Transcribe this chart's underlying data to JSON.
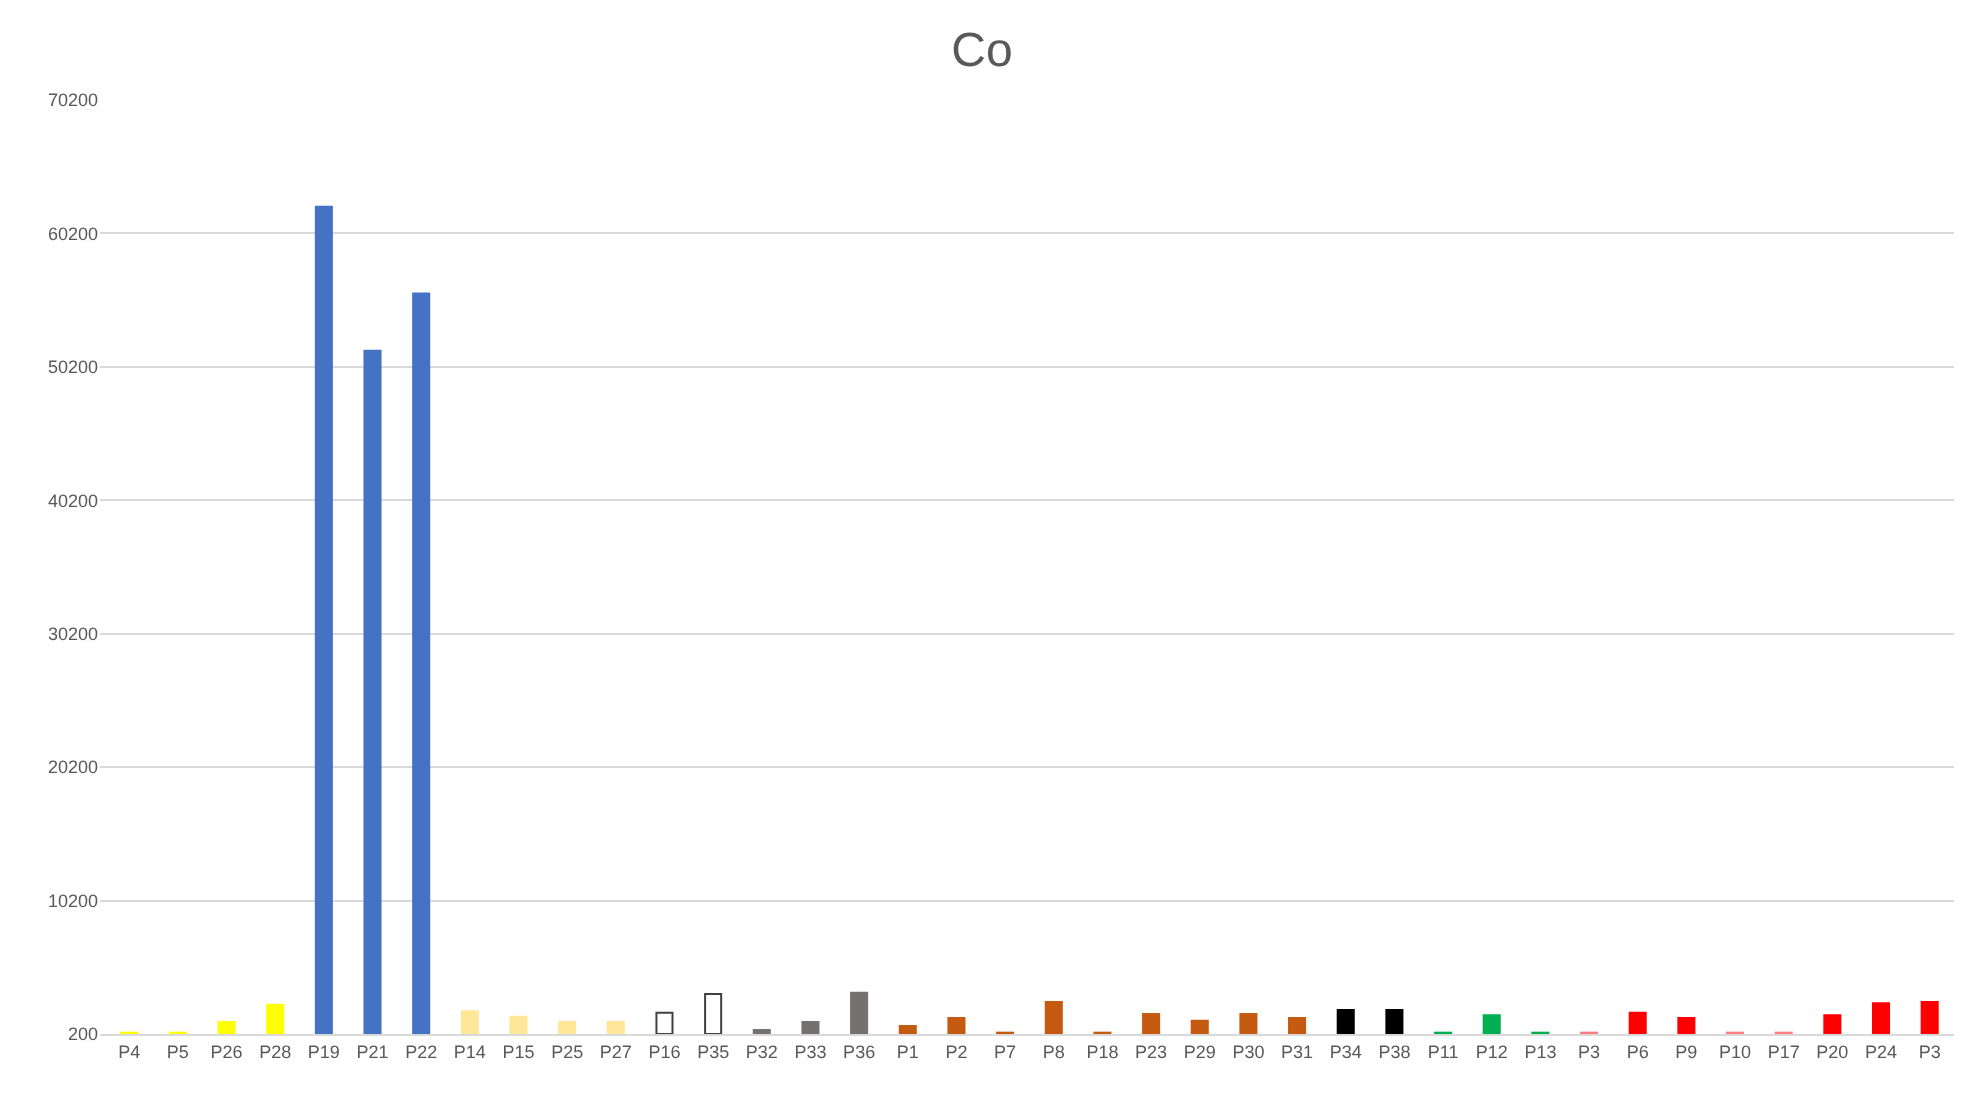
{
  "chart_data": {
    "type": "bar",
    "title": "Co",
    "categories": [
      "P4",
      "P5",
      "P26",
      "P28",
      "P19",
      "P21",
      "P22",
      "P14",
      "P15",
      "P25",
      "P27",
      "P16",
      "P35",
      "P32",
      "P33",
      "P36",
      "P1",
      "P2",
      "P7",
      "P8",
      "P18",
      "P23",
      "P29",
      "P30",
      "P31",
      "P34",
      "P38",
      "P11",
      "P12",
      "P13",
      "P3",
      "P6",
      "P9",
      "P10",
      "P17",
      "P20",
      "P24",
      "P3"
    ],
    "values": [
      300,
      300,
      1100,
      2400,
      62200,
      51400,
      55700,
      1900,
      1500,
      1100,
      1100,
      1800,
      3200,
      500,
      1100,
      3300,
      800,
      1400,
      300,
      2600,
      300,
      1700,
      1200,
      1700,
      1400,
      2000,
      2000,
      300,
      1600,
      300,
      300,
      1800,
      1400,
      300,
      300,
      1600,
      2500,
      2600
    ],
    "colors": [
      "#ffff00",
      "#ffff00",
      "#ffff00",
      "#ffff00",
      "#4472c4",
      "#4472c4",
      "#4472c4",
      "#ffe699",
      "#ffe699",
      "#ffe699",
      "#ffe699",
      "#ffffff",
      "#ffffff",
      "#767171",
      "#767171",
      "#767171",
      "#c55a11",
      "#c55a11",
      "#c55a11",
      "#c55a11",
      "#c55a11",
      "#c55a11",
      "#c55a11",
      "#c55a11",
      "#c55a11",
      "#000000",
      "#000000",
      "#00b050",
      "#00b050",
      "#00b050",
      "#ff7c80",
      "#ff0000",
      "#ff0000",
      "#ff7c80",
      "#ff7c80",
      "#ff0000",
      "#ff0000",
      "#ff0000"
    ],
    "ylim": [
      200,
      70200
    ],
    "yticks": [
      200,
      10200,
      20200,
      30200,
      40200,
      50200,
      60200,
      70200
    ],
    "grid": "y"
  }
}
